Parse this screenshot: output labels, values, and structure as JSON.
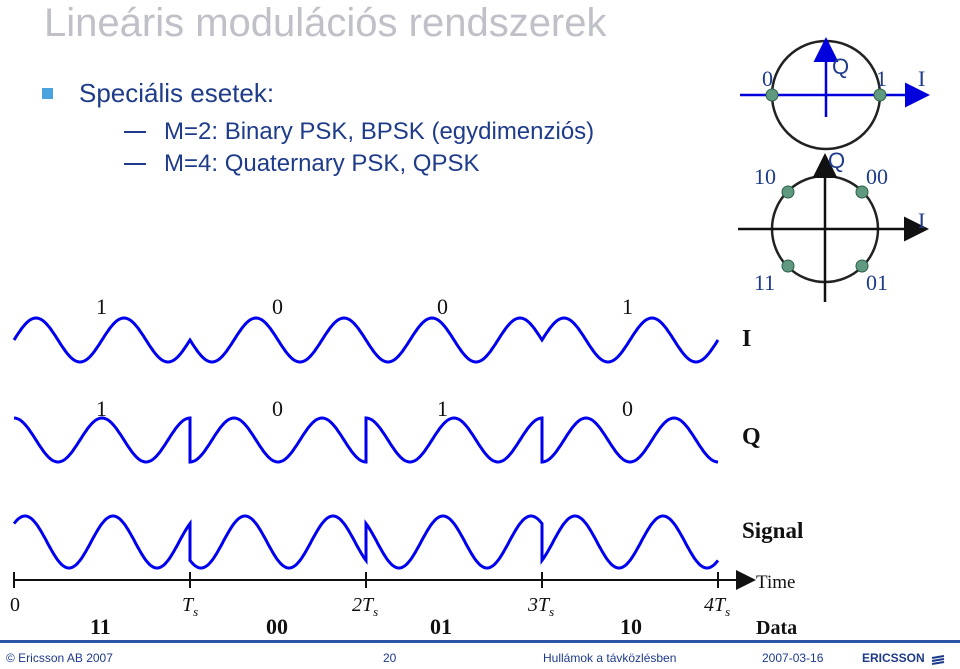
{
  "slide": {
    "title": "Lineáris modulációs rendszerek",
    "bullet": "Speciális esetek:",
    "subs": [
      "M=2: Binary PSK, BPSK (egydimenziós)",
      "M=4: Quaternary PSK, QPSK"
    ]
  },
  "bpsk_constellation": {
    "axis_q": "Q",
    "axis_i": "I",
    "point_left": "0",
    "point_right": "1"
  },
  "qpsk_constellation": {
    "axis_q": "Q",
    "axis_i": "I",
    "points": [
      "10",
      "00",
      "11",
      "01"
    ]
  },
  "waveforms": {
    "i_label": "I",
    "q_label": "Q",
    "signal_label": "Signal",
    "time_label": "Time",
    "data_label": "Data",
    "i_bits": [
      "1",
      "0",
      "0",
      "1"
    ],
    "q_bits": [
      "1",
      "0",
      "1",
      "0"
    ],
    "time_ticks": [
      "0",
      "T",
      "2T",
      "3T",
      "4T"
    ],
    "time_sub": "s",
    "data_symbols": [
      "11",
      "00",
      "01",
      "10"
    ]
  },
  "footer": {
    "copyright": "© Ericsson AB 2007",
    "page": "20",
    "course": "Hullámok a távközlésben",
    "date": "2007-03-16",
    "logo": "ERICSSON"
  },
  "colors": {
    "wave": "#0000ee",
    "point": "#5f9a80",
    "text": "#1f3c8a",
    "title": "#c0c0c8"
  }
}
